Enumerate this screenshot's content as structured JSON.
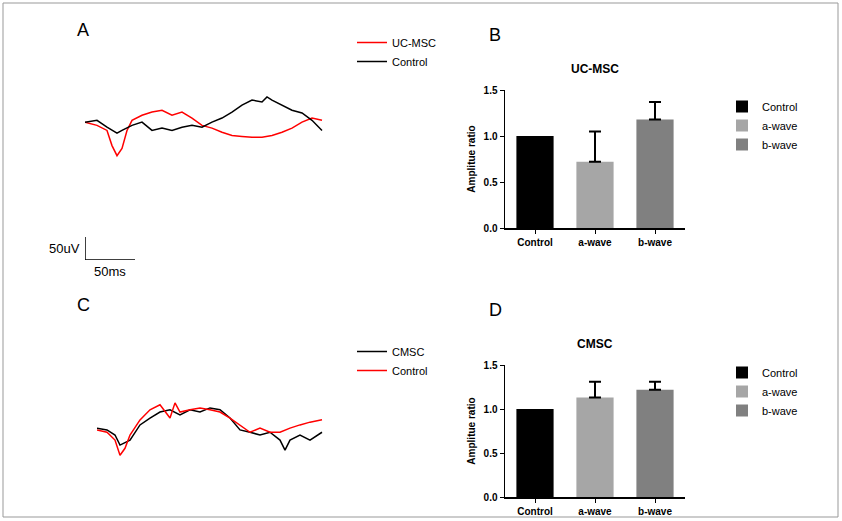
{
  "chart_data": [
    {
      "type": "line",
      "panel": "A",
      "tick_labels": false,
      "grid": false,
      "xlim": [
        0,
        240
      ],
      "ylim": [
        -300,
        70
      ],
      "scale_bar": {
        "x": 50,
        "x_label": "50ms",
        "y": 50,
        "y_label": "50uV"
      },
      "series": [
        {
          "name": "UC-MSC",
          "color": "#ff0000",
          "x": [
            0,
            12,
            22,
            27,
            32,
            37,
            42,
            47,
            57,
            67,
            77,
            87,
            97,
            107,
            117,
            127,
            137,
            147,
            157,
            167,
            177,
            187,
            197,
            207,
            217,
            227,
            237
          ],
          "values": [
            0,
            -7,
            -18,
            -51,
            -73,
            -57,
            -18,
            4,
            15,
            22,
            26,
            15,
            22,
            9,
            -7,
            -13,
            -22,
            -29,
            -31,
            -33,
            -33,
            -29,
            -22,
            -13,
            0,
            9,
            4
          ]
        },
        {
          "name": "Control",
          "color": "#000000",
          "x": [
            0,
            12,
            22,
            32,
            37,
            47,
            57,
            67,
            77,
            87,
            97,
            107,
            117,
            127,
            137,
            147,
            157,
            167,
            177,
            182,
            187,
            197,
            207,
            217,
            227,
            237
          ],
          "values": [
            0,
            4,
            -11,
            -24,
            -18,
            -7,
            0,
            -18,
            -13,
            -18,
            -11,
            -7,
            -11,
            0,
            9,
            22,
            37,
            48,
            44,
            55,
            48,
            37,
            26,
            20,
            4,
            -18
          ]
        }
      ]
    },
    {
      "type": "bar",
      "panel": "B",
      "title": "UC-MSC",
      "y_label": "Amplitue ratio",
      "grid": false,
      "categories": [
        "Control",
        "a-wave",
        "b-wave"
      ],
      "values": [
        1.0,
        0.72,
        1.18
      ],
      "errors": [
        null,
        0.33,
        0.19
      ],
      "colors": [
        "#000000",
        "#a6a6a6",
        "#808080"
      ],
      "ylim": [
        0,
        1.5
      ],
      "yticks": [
        {
          "value": 0,
          "label": "0.0"
        },
        {
          "value": 0.5,
          "label": "0.5"
        },
        {
          "value": 1,
          "label": "1.0"
        },
        {
          "value": 1.5,
          "label": "1.5"
        }
      ]
    },
    {
      "type": "line",
      "panel": "C",
      "tick_labels": false,
      "grid": false,
      "xlim": [
        0,
        240
      ],
      "ylim": [
        -100,
        70
      ],
      "series": [
        {
          "name": "CMSC",
          "color": "#000000",
          "x": [
            0,
            10,
            18,
            23,
            33,
            43,
            53,
            63,
            73,
            83,
            93,
            103,
            113,
            123,
            133,
            143,
            153,
            163,
            173,
            183,
            188,
            193,
            203,
            213,
            225
          ],
          "values": [
            0,
            -4,
            -15,
            -37,
            -26,
            7,
            22,
            35,
            40,
            29,
            40,
            35,
            44,
            40,
            22,
            -4,
            -9,
            -15,
            -9,
            -26,
            -48,
            -26,
            -15,
            -26,
            -9
          ]
        },
        {
          "name": "Control",
          "color": "#ff0000",
          "x": [
            0,
            10,
            18,
            23,
            28,
            33,
            43,
            53,
            63,
            73,
            78,
            83,
            93,
            103,
            113,
            123,
            133,
            143,
            153,
            163,
            173,
            183,
            193,
            203,
            213,
            225
          ],
          "values": [
            -4,
            -9,
            -26,
            -59,
            -44,
            -15,
            18,
            40,
            51,
            22,
            55,
            35,
            40,
            44,
            40,
            35,
            22,
            7,
            -9,
            0,
            -9,
            -9,
            0,
            7,
            13,
            18
          ]
        }
      ]
    },
    {
      "type": "bar",
      "panel": "D",
      "title": "CMSC",
      "y_label": "Amplitue ratio",
      "grid": false,
      "categories": [
        "Control",
        "a-wave",
        "b-wave"
      ],
      "values": [
        1.0,
        1.13,
        1.22
      ],
      "errors": [
        null,
        0.18,
        0.09
      ],
      "colors": [
        "#000000",
        "#a6a6a6",
        "#808080"
      ],
      "ylim": [
        0,
        1.5
      ],
      "yticks": [
        {
          "value": 0,
          "label": "0.0"
        },
        {
          "value": 0.5,
          "label": "0.5"
        },
        {
          "value": 1,
          "label": "1.0"
        },
        {
          "value": 1.5,
          "label": "1.5"
        }
      ]
    }
  ]
}
